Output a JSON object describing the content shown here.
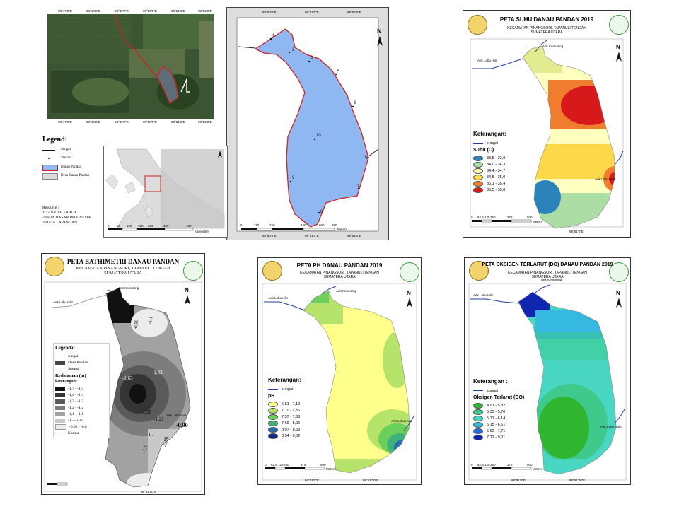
{
  "satellite": {
    "coords_top": [
      "98°47'0\"E",
      "98°48'0\"E",
      "98°49'0\"E",
      "98°50'0\"E",
      "98°51'0\"E",
      "98°52'0\"E"
    ],
    "coords_bottom": [
      "98°47'0\"E",
      "98°48'0\"E",
      "98°49'0\"E",
      "98°50'0\"E",
      "98°51'0\"E",
      "98°52'0\"E"
    ]
  },
  "station_map": {
    "stations": [
      "1",
      "2",
      "3",
      "4",
      "5",
      "6",
      "7",
      "8",
      "9",
      "10"
    ],
    "coords_top": [
      "98°50'0\"E",
      "98°51'0\"E",
      "98°52'0\"E"
    ],
    "coords_bottom": [
      "98°50'0\"E",
      "98°51'0\"E",
      "98°52'0\"E"
    ],
    "scale": [
      "0",
      "110",
      "220",
      "",
      "440",
      "660",
      "880"
    ],
    "scale_unit": "Meters"
  },
  "legend_main": {
    "title": "Legend:",
    "items": [
      "Sungai",
      "Stasiun",
      "Danau Pandan",
      "Desa Danau Pandan"
    ],
    "resource_title": "Resource :",
    "resources": [
      "1. GOOGLE EARTH",
      "2.PETA DASAR INDONESIA",
      "3.DATA LAPANGAN"
    ]
  },
  "inset": {
    "scale": [
      "0",
      "50",
      "100",
      "150",
      "200",
      "300",
      "400"
    ],
    "scale_unit": "Kilometers"
  },
  "suhu": {
    "title": "PETA SUHU DANAU PANDAN 2019",
    "subtitle1": "KECAMATAN PINANGSORI, TAPANULI TENGAH",
    "subtitle2": "SUMATERA UTARA",
    "legend_title": "Keterangan:",
    "river": "sungai",
    "param": "Suhu (C)",
    "classes": [
      "33,5 - 33,9",
      "34,0 - 34,3",
      "34,4 - 34,7",
      "34,8 - 35,0",
      "35,1 - 35,4",
      "35,5 - 35,8"
    ],
    "colors": [
      "#2b83ba",
      "#abdda4",
      "#ffffbf",
      "#fdd94a",
      "#f07d2e",
      "#d7191c"
    ],
    "places": [
      "Aek Kemuning",
      "Aek Lobu Hilir",
      "Aek Lobu Hulu"
    ]
  },
  "bathy": {
    "title": "PETA BATHIMETRI DANAU PANDAN",
    "subtitle1": "KECAMATAN PINANGSORI, TAPANULI TENGAH",
    "subtitle2": "SUMATERA UTARA",
    "legend_title": "Legenda:",
    "legend_items": [
      "sungai",
      "Desa Pandan",
      "Sungai"
    ],
    "param": "Kedalaman (m)",
    "ket": "keterangan:",
    "classes": [
      "-1,7 - -1,5",
      "-1,4 - -1,4",
      "-1,3 - -1,3",
      "-1,2 - -1,2",
      "-1,1 - -1,1",
      "-1 - -0,96",
      "-0,95 - -0,8"
    ],
    "colors": [
      "#111111",
      "#353535",
      "#5a5a5a",
      "#7d7d7d",
      "#a2a2a2",
      "#c8c8c8",
      "#ececec"
    ],
    "kontur": "Kontur",
    "contour_labels": [
      "-1,3",
      "-0,99",
      "-1,1",
      "-1,43",
      "-1,63",
      "-1,32",
      "-1,21",
      "-1,1",
      "-0,90",
      "-0,88",
      "-1,1"
    ],
    "places": [
      "Aek Kemuning",
      "Aek Lobu Hilir",
      "Aek Lobu Hulu"
    ]
  },
  "ph": {
    "title": "PETA PH DANAU PANDAN 2019",
    "subtitle1": "KECAMATAN PINANGSORI, TAPANULI TENGAH",
    "subtitle2": "SUMATERA UTARA",
    "legend_title": "Keterangan:",
    "river": "sungai",
    "param": "pH",
    "classes": [
      "6,81 - 7,10",
      "7,11 - 7,36",
      "7,37 - 7,68",
      "7,69 - 8,06",
      "8,07 - 8,53",
      "8,54 - 9,02"
    ],
    "colors": [
      "#ffff8c",
      "#b6e46a",
      "#6ccf5c",
      "#3fb27a",
      "#2a6fb0",
      "#152a86"
    ],
    "places": [
      "Aek Kemuning",
      "Aek Lobu Hilir",
      "Aek Lobu Hulu"
    ]
  },
  "do": {
    "title": "PETA OKSIGEN TERLARUT (DO) DANAU PANDAN 2019",
    "subtitle1": "KECAMATAN PINANGSORI, TAPANULI TENGAH",
    "subtitle2": "SUMATERA UTARA",
    "legend_title": "Keterangan :",
    "river": "sungai",
    "param": "Oksigen Terlarut (DO)",
    "classes": [
      "4,91 - 5,32",
      "5,33 - 5,70",
      "5,71 - 6,14",
      "6,15 - 6,61",
      "6,62 - 7,71",
      "7,72 - 9,01"
    ],
    "colors": [
      "#2fb52f",
      "#3fc98a",
      "#49d6c2",
      "#35b9e0",
      "#1f6fe0",
      "#1025b0"
    ],
    "places": [
      "Aek Kemuning",
      "Aek Lobu Hilir",
      "Aek Lobu Hulu"
    ]
  },
  "common": {
    "north": "N",
    "scale": [
      "0",
      "62,5 125",
      "250",
      "375",
      "500"
    ],
    "scale_unit": "Meters",
    "lon_a": "98°51'0\"E",
    "lon_b": "98°51'20\"E"
  }
}
